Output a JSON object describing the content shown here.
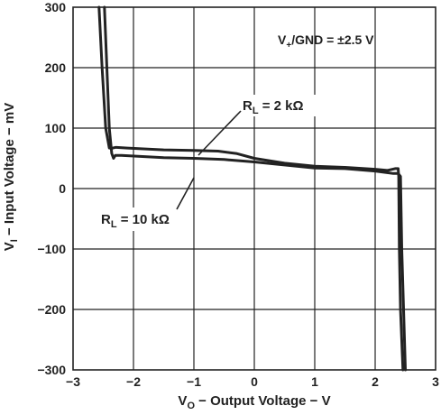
{
  "chart_data": {
    "type": "line",
    "xlabel": {
      "main": "V",
      "sub": "O",
      "rest": " − Output Voltage − V"
    },
    "ylabel": {
      "main": "V",
      "sub": "I",
      "rest": " − Input Voltage − mV"
    },
    "xlim": [
      -3,
      3
    ],
    "ylim": [
      -300,
      300
    ],
    "x_ticks": [
      -3,
      -2,
      -1,
      0,
      1,
      2,
      3
    ],
    "y_ticks": [
      300,
      200,
      100,
      0,
      -100,
      -200,
      -300
    ],
    "x_tick_labels": [
      "−3",
      "−2",
      "−1",
      "0",
      "1",
      "2",
      "3"
    ],
    "y_tick_labels": [
      "300",
      "200",
      "100",
      "0",
      "−100",
      "−200",
      "−300"
    ],
    "grid": true,
    "annotation": {
      "main": "V",
      "sub": "+",
      "rest": "/GND = ±2.5 V"
    },
    "series": [
      {
        "name": {
          "main": "R",
          "sub": "L",
          "rest": " = 2 kΩ"
        },
        "x": [
          -2.57,
          -2.52,
          -2.46,
          -2.4,
          -2.34,
          -2.3,
          -2.28,
          -2.1,
          -1.5,
          -1.0,
          -0.6,
          -0.3,
          0.0,
          0.5,
          1.0,
          1.5,
          2.0,
          2.2,
          2.33,
          2.38,
          2.39,
          2.4,
          2.42,
          2.46
        ],
        "y": [
          300,
          200,
          100,
          67,
          67,
          68,
          68,
          67,
          64,
          63,
          62,
          58,
          50,
          42,
          37,
          35,
          32,
          30,
          33,
          33,
          20,
          -100,
          -200,
          -300
        ]
      },
      {
        "name": {
          "main": "R",
          "sub": "L",
          "rest": " = 10 kΩ"
        },
        "x": [
          -2.48,
          -2.44,
          -2.4,
          -2.36,
          -2.33,
          -2.3,
          -2.2,
          -1.5,
          -1.0,
          -0.5,
          0.0,
          0.5,
          1.0,
          1.5,
          2.0,
          2.3,
          2.38,
          2.42,
          2.44,
          2.47,
          2.5
        ],
        "y": [
          300,
          200,
          100,
          58,
          50,
          55,
          55,
          51,
          50,
          48,
          44,
          39,
          34,
          33,
          29,
          25,
          25,
          20,
          -100,
          -200,
          -300
        ]
      }
    ]
  }
}
